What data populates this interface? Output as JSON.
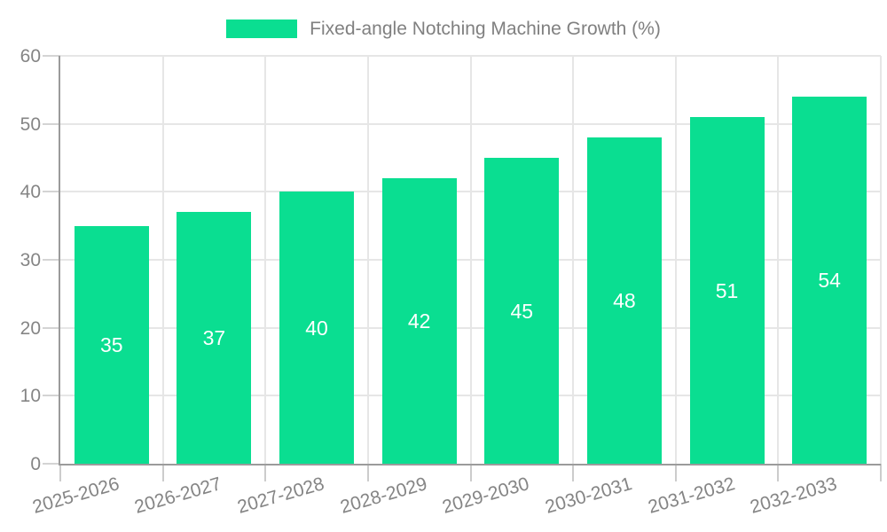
{
  "chart_data": {
    "type": "bar",
    "title": "Fixed-angle Notching Machine Growth (%)",
    "categories": [
      "2025-2026",
      "2026-2027",
      "2027-2028",
      "2028-2029",
      "2029-2030",
      "2030-2031",
      "2031-2032",
      "2032-2033"
    ],
    "values": [
      35,
      37,
      40,
      42,
      45,
      48,
      51,
      54
    ],
    "value_labels": [
      "35",
      "37",
      "40",
      "42",
      "45",
      "48",
      "51",
      "54"
    ],
    "xlabel": "",
    "ylabel": "",
    "ylim": [
      0,
      60
    ],
    "y_tick_step": 10,
    "y_ticks": [
      "0",
      "10",
      "20",
      "30",
      "40",
      "50",
      "60"
    ],
    "grid": "on",
    "legend_position": "top-center",
    "colors": {
      "bar": "#0ade91",
      "grid": "#e6e6e6",
      "axis": "#9b9b9b",
      "tick": "#cccccc",
      "axis_text": "#858585",
      "legend_text": "#808080",
      "value_text": "#ffffff",
      "background": "#ffffff"
    }
  }
}
